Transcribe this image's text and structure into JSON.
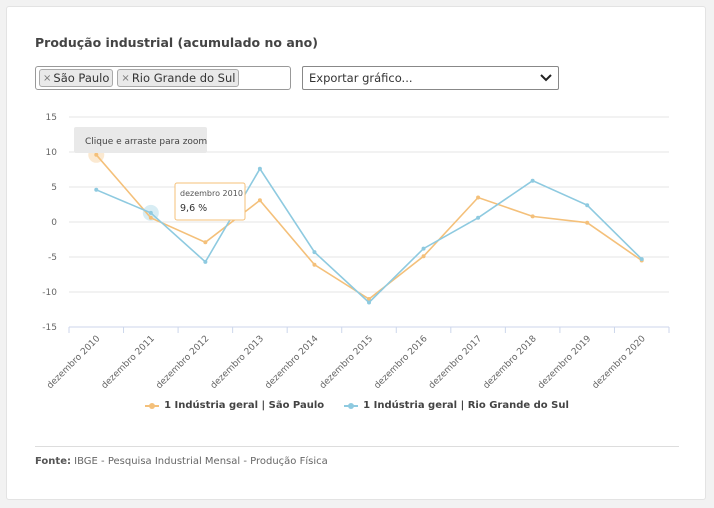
{
  "panel": {
    "title": "Produção industrial (acumulado no ano)"
  },
  "filters": {
    "selected": [
      "São Paulo",
      "Rio Grande do Sul"
    ],
    "remove_glyph": "×"
  },
  "export": {
    "label": "Exportar gráfico...",
    "chevron": "chevron-down-icon"
  },
  "zoom_hint": "Clique e arraste para zoom",
  "tooltip": {
    "category": "dezembro 2010",
    "value": "9,6 %"
  },
  "source": {
    "label": "Fonte:",
    "text": "IBGE - Pesquisa Industrial Mensal - Produção Física"
  },
  "colors": {
    "sao_paulo": "#f4c07a",
    "rio_grande_do_sul": "#8ecae0"
  },
  "chart_data": {
    "type": "line",
    "title": "",
    "xlabel": "",
    "ylabel": "",
    "ylim": [
      -15,
      15
    ],
    "yticks": [
      15,
      10,
      5,
      0,
      -5,
      -10,
      -15
    ],
    "categories": [
      "dezembro 2010",
      "dezembro 2011",
      "dezembro 2012",
      "dezembro 2013",
      "dezembro 2014",
      "dezembro 2015",
      "dezembro 2016",
      "dezembro 2017",
      "dezembro 2018",
      "dezembro 2019",
      "dezembro 2020"
    ],
    "series": [
      {
        "name": "1 Indústria geral | São Paulo",
        "values": [
          9.6,
          0.6,
          -2.9,
          3.1,
          -6.1,
          -11.0,
          -4.9,
          3.5,
          0.8,
          -0.1,
          -5.5
        ]
      },
      {
        "name": "1 Indústria geral | Rio Grande do Sul",
        "values": [
          4.6,
          1.3,
          -5.7,
          7.6,
          -4.3,
          -11.5,
          -3.8,
          0.6,
          5.9,
          2.4,
          -5.3
        ]
      }
    ],
    "legend_position": "bottom"
  }
}
